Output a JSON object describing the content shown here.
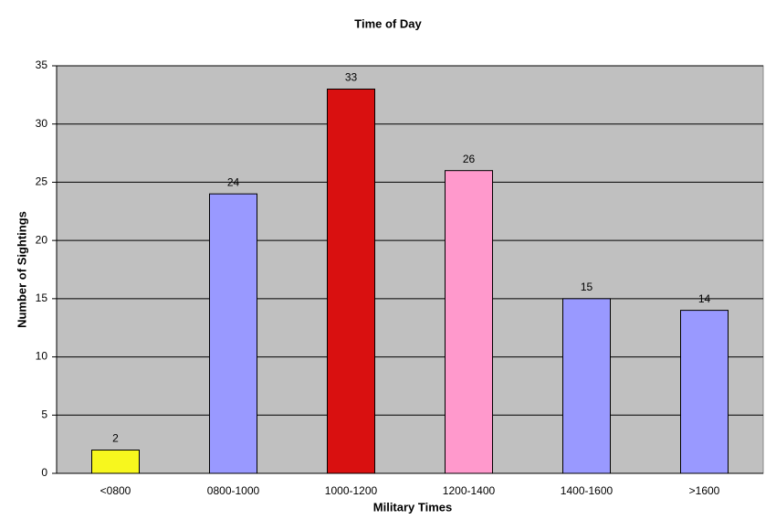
{
  "chart_data": {
    "type": "bar",
    "title": "Time of Day",
    "x_label": "Military Times",
    "y_label": "Number of Sightings",
    "categories": [
      "<0800",
      "0800-1000",
      "1000-1200",
      "1200-1400",
      "1400-1600",
      ">1600"
    ],
    "values": [
      2,
      24,
      33,
      26,
      15,
      14
    ],
    "colors": [
      "#f7f71e",
      "#9999ff",
      "#d91010",
      "#ff99cc",
      "#9999ff",
      "#9999ff"
    ],
    "ylim": [
      0,
      35
    ],
    "yticks": [
      0,
      5,
      10,
      15,
      20,
      25,
      30,
      35
    ],
    "grid": true
  }
}
